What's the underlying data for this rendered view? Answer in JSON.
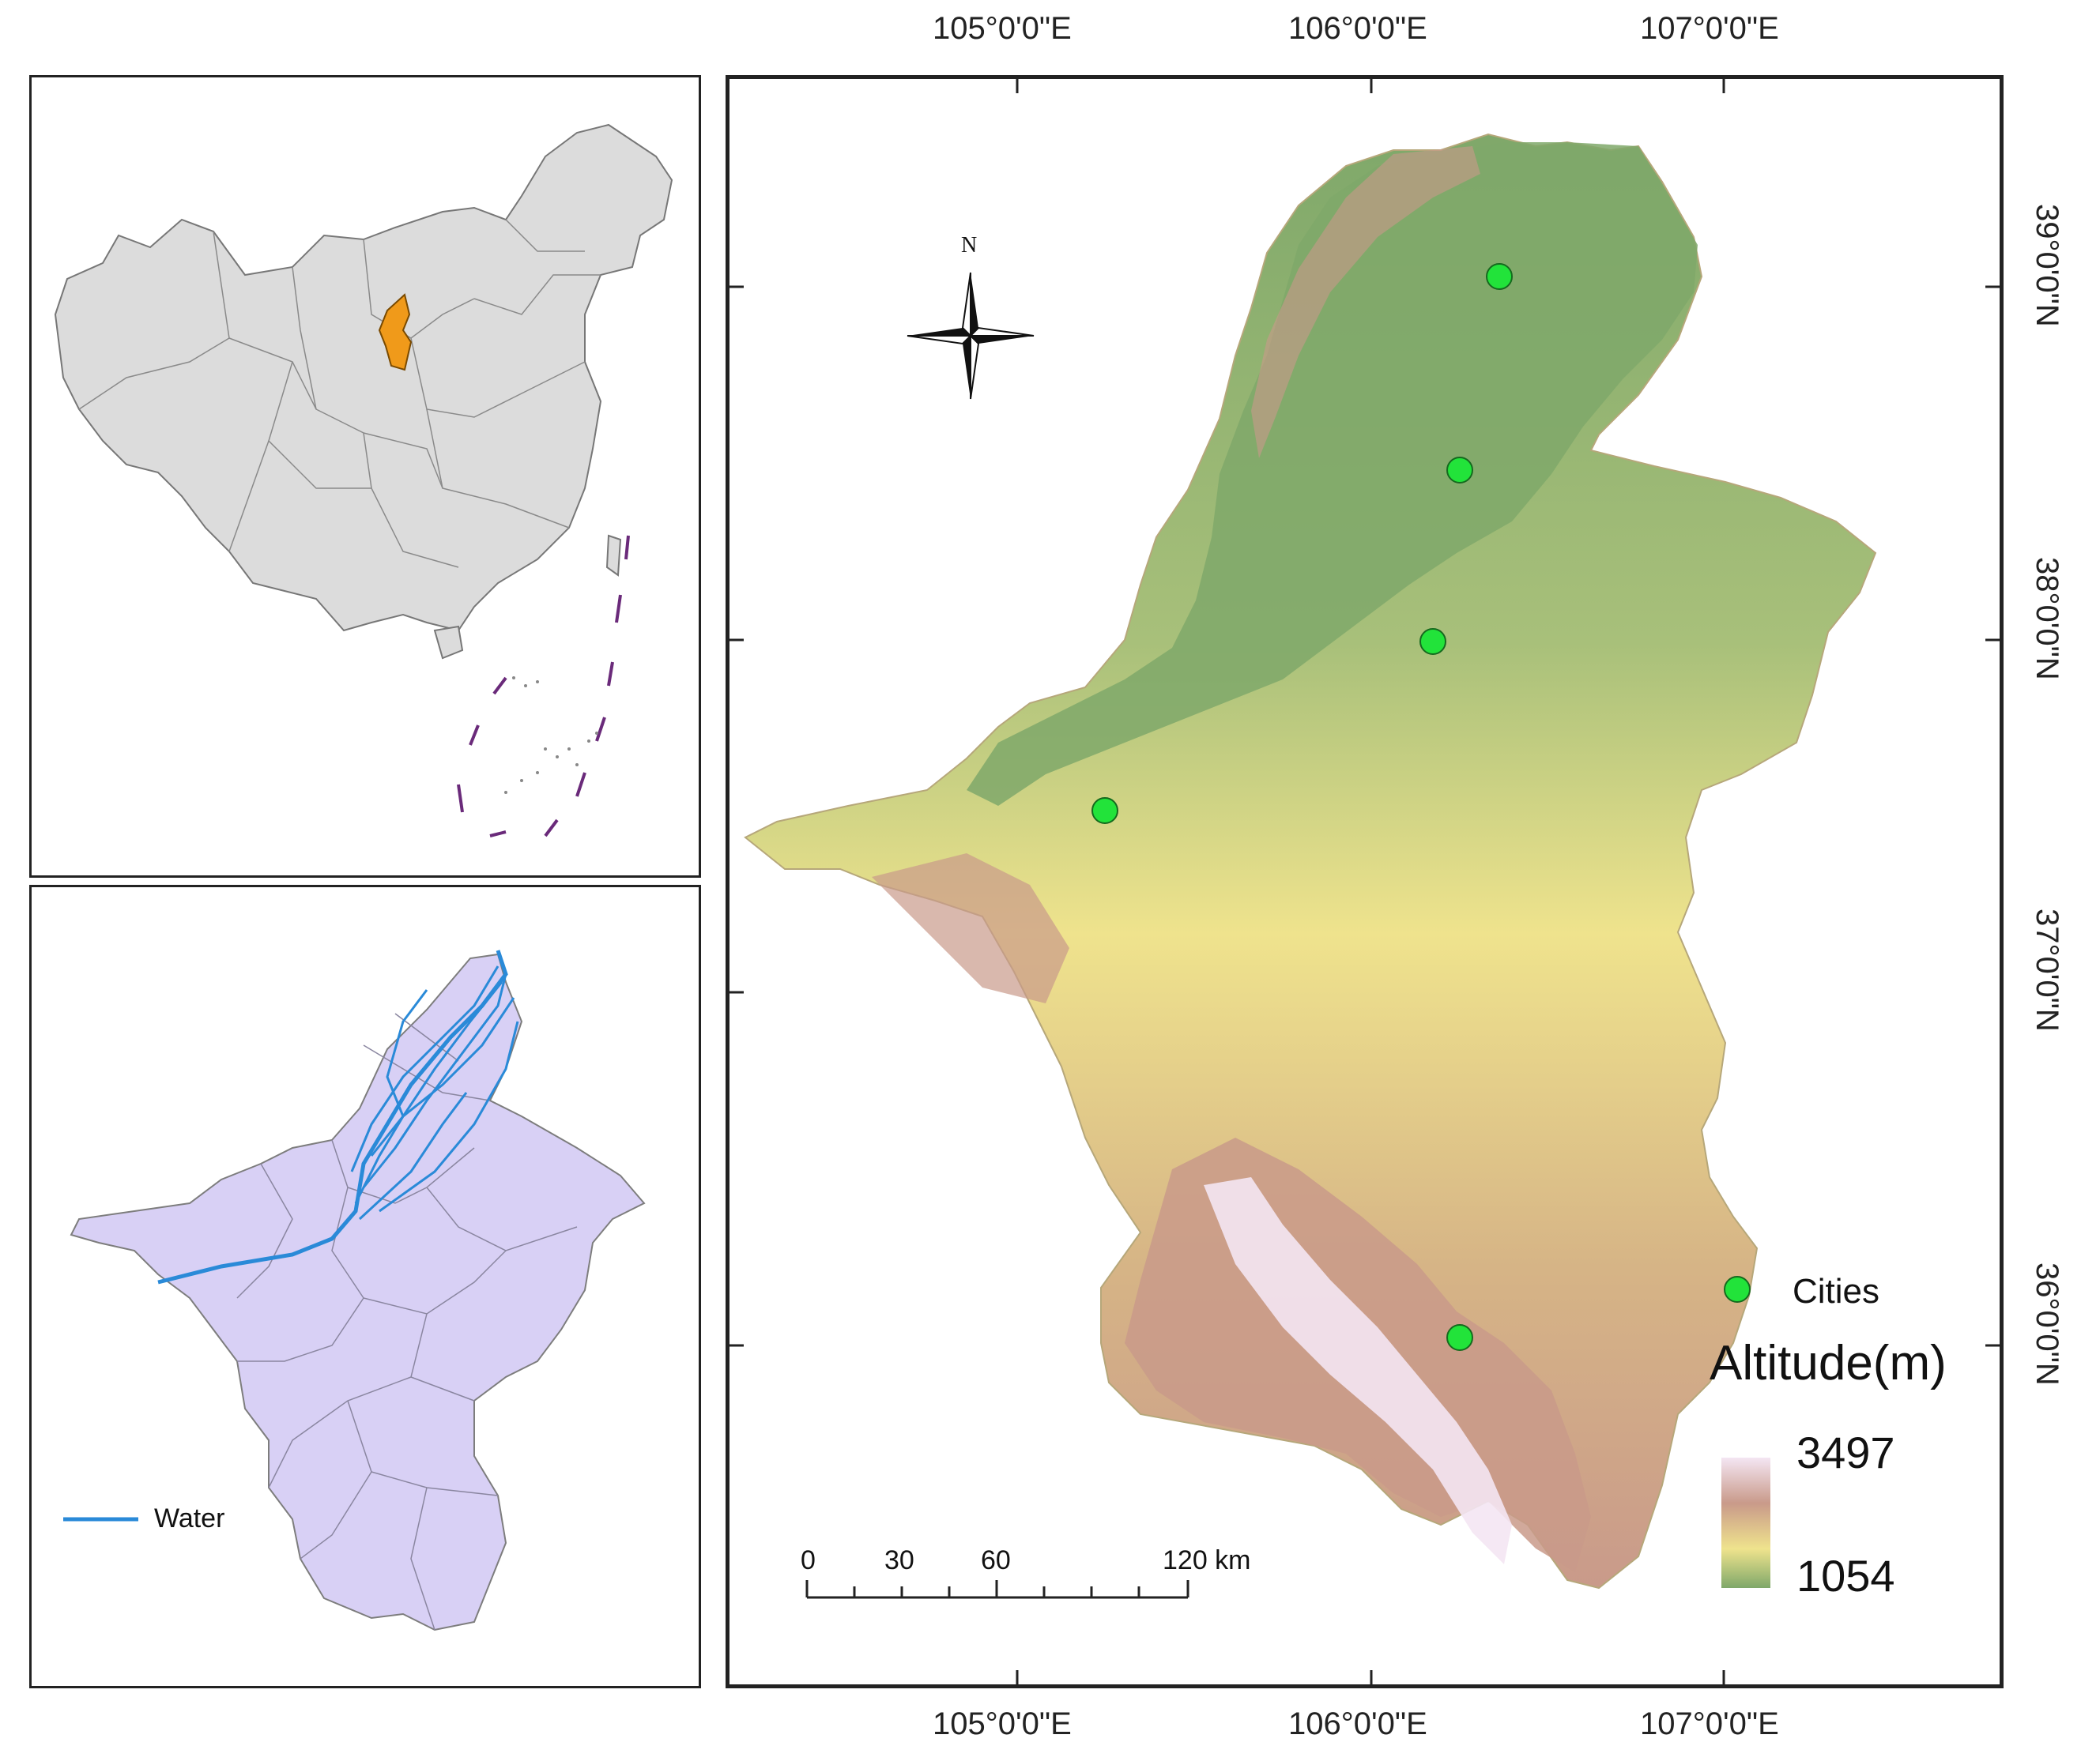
{
  "graticule": {
    "lon_labels": [
      "105°0'0\"E",
      "106°0'0\"E",
      "107°0'0\"E"
    ],
    "lat_labels": [
      "39°0'0\"N",
      "38°0'0\"N",
      "37°0'0\"N",
      "36°0'0\"N"
    ]
  },
  "north_arrow": {
    "label": "N"
  },
  "legend": {
    "cities_label": "Cities",
    "altitude_title": "Altitude(m)",
    "altitude_max": "3497",
    "altitude_min": "1054",
    "colors": {
      "high": "#f4e6f3",
      "mid_high": "#c99a8a",
      "mid": "#efe38d",
      "low": "#7fa86a",
      "city": "#22e33a"
    }
  },
  "scale_bar": {
    "labels": [
      "0",
      "30",
      "60",
      "120 km"
    ]
  },
  "water_inset": {
    "legend_label": "Water",
    "water_color": "#2a8ad8",
    "region_color": "#d8d0f5"
  },
  "china_inset": {
    "highlight_color": "#f09a1a",
    "land_color": "#dcdcdc"
  }
}
